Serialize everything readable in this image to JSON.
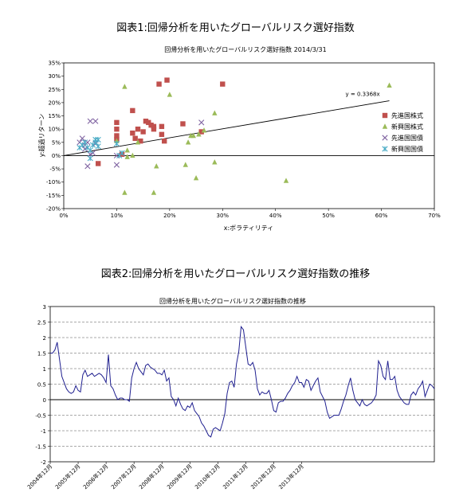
{
  "figure1": {
    "heading": "図表1:回帰分析を用いたグローバルリスク選好指数"
  },
  "figure2": {
    "heading": "図表2:回帰分析を用いたグローバルリスク選好指数の推移"
  },
  "chart_data": [
    {
      "type": "scatter",
      "title": "回帰分析を用いたグローバルリスク選好指数 2014/3/31",
      "xlabel": "x:ボラティリティ",
      "ylabel": "y:超過リターン",
      "xlim": [
        0,
        70
      ],
      "ylim": [
        -20,
        35
      ],
      "x_ticks": [
        "0%",
        "10%",
        "20%",
        "30%",
        "40%",
        "50%",
        "60%",
        "70%"
      ],
      "y_ticks": [
        "35%",
        "30%",
        "25%",
        "20%",
        "15%",
        "10%",
        "5%",
        "0%",
        "-5%",
        "-10%",
        "-15%",
        "-20%"
      ],
      "legend_position": "right",
      "regression": {
        "label": "y = 0.3368x",
        "slope": 0.3368,
        "x_range": [
          0,
          61.5
        ]
      },
      "series": [
        {
          "name": "先進国株式",
          "marker": "square",
          "color": "#c0504d",
          "points": [
            [
              10,
              12.5
            ],
            [
              10,
              10
            ],
            [
              10,
              7.5
            ],
            [
              10,
              6
            ],
            [
              11,
              0.5
            ],
            [
              6.5,
              -3
            ],
            [
              13,
              17
            ],
            [
              13,
              8.5
            ],
            [
              13.5,
              6.5
            ],
            [
              14,
              10
            ],
            [
              14.5,
              5.5
            ],
            [
              15,
              9
            ],
            [
              15.5,
              13
            ],
            [
              16,
              12.5
            ],
            [
              16.5,
              11.5
            ],
            [
              17,
              10
            ],
            [
              17,
              11
            ],
            [
              18,
              27
            ],
            [
              18.5,
              11
            ],
            [
              18.5,
              8
            ],
            [
              19,
              5.5
            ],
            [
              19.5,
              28.5
            ],
            [
              22.5,
              12
            ],
            [
              26,
              9
            ],
            [
              30,
              27
            ]
          ]
        },
        {
          "name": "新興国株式",
          "marker": "triangle",
          "color": "#9bbb59",
          "points": [
            [
              11.5,
              26
            ],
            [
              11.5,
              -14
            ],
            [
              12,
              2
            ],
            [
              12,
              -0.5
            ],
            [
              13,
              0
            ],
            [
              10,
              5.5
            ],
            [
              14,
              5
            ],
            [
              17,
              -14
            ],
            [
              17.5,
              -4
            ],
            [
              20,
              23
            ],
            [
              23,
              -3.5
            ],
            [
              23.5,
              5
            ],
            [
              24,
              7.5
            ],
            [
              24.5,
              7.5
            ],
            [
              25,
              -8.5
            ],
            [
              25.5,
              8
            ],
            [
              26.5,
              9.5
            ],
            [
              28.5,
              16
            ],
            [
              28.5,
              -2.5
            ],
            [
              42,
              -9.5
            ],
            [
              61.5,
              26.5
            ]
          ]
        },
        {
          "name": "先進国国債",
          "marker": "x",
          "color": "#8064a2",
          "points": [
            [
              3,
              5
            ],
            [
              3.5,
              6.5
            ],
            [
              4,
              4
            ],
            [
              4,
              2.5
            ],
            [
              4.5,
              5
            ],
            [
              4.5,
              -4
            ],
            [
              5,
              13
            ],
            [
              5,
              0.5
            ],
            [
              5.5,
              1
            ],
            [
              6,
              13
            ],
            [
              6,
              4.5
            ],
            [
              10,
              0
            ],
            [
              10,
              -3.5
            ],
            [
              26,
              12.5
            ]
          ]
        },
        {
          "name": "新興国国債",
          "marker": "star",
          "color": "#4bacc6",
          "points": [
            [
              3,
              3
            ],
            [
              3.5,
              4
            ],
            [
              4,
              5
            ],
            [
              4.5,
              3
            ],
            [
              5,
              2
            ],
            [
              5,
              -1
            ],
            [
              5.5,
              4
            ],
            [
              6,
              6
            ],
            [
              6,
              5
            ],
            [
              6.5,
              6
            ],
            [
              6.5,
              3.5
            ],
            [
              10,
              4.5
            ],
            [
              10.5,
              0
            ],
            [
              11,
              1
            ]
          ]
        }
      ]
    },
    {
      "type": "line",
      "title": "回帰分析を用いたグローバルリスク選好指数の推移",
      "ylim": [
        -2,
        3
      ],
      "y_ticks": [
        "3",
        "2.5",
        "2",
        "1.5",
        "1",
        "0.5",
        "0",
        "-0.5",
        "-1",
        "-1.5",
        "-2"
      ],
      "x_labels": [
        "2004年12月",
        "2005年12月",
        "2006年12月",
        "2007年12月",
        "2008年12月",
        "2009年12月",
        "2010年12月",
        "2011年12月",
        "2012年12月",
        "2013年12月"
      ],
      "x_start": "2004年12月",
      "x_end": "2014年3月",
      "series": [
        {
          "name": "",
          "color": "#1f1f8f",
          "values": [
            1.5,
            1.5,
            1.6,
            1.85,
            1.3,
            0.75,
            0.55,
            0.35,
            0.25,
            0.2,
            0.25,
            0.45,
            0.3,
            0.25,
            0.8,
            0.95,
            0.75,
            0.8,
            0.85,
            0.75,
            0.8,
            0.85,
            0.8,
            0.7,
            0.55,
            1.45,
            0.45,
            0.35,
            0.15,
            0.0,
            0.05,
            0.05,
            0.0,
            0.0,
            -0.05,
            0.7,
            1.0,
            1.2,
            1.0,
            0.9,
            0.8,
            1.1,
            1.15,
            1.05,
            1.0,
            0.95,
            0.85,
            0.85,
            0.8,
            0.95,
            0.6,
            0.7,
            0.1,
            0.0,
            -0.2,
            0.05,
            -0.15,
            -0.3,
            -0.35,
            -0.2,
            -0.25,
            -0.1,
            -0.35,
            -0.45,
            -0.55,
            -0.75,
            -0.85,
            -1.0,
            -1.15,
            -1.2,
            -0.95,
            -0.9,
            -0.95,
            -1.0,
            -0.75,
            -0.45,
            0.2,
            0.55,
            0.6,
            0.4,
            1.15,
            1.55,
            2.35,
            2.25,
            1.7,
            1.15,
            1.1,
            1.2,
            0.95,
            0.35,
            0.15,
            0.25,
            0.2,
            0.2,
            0.3,
            0.0,
            -0.35,
            -0.4,
            -0.1,
            -0.05,
            -0.05,
            0.05,
            0.2,
            0.3,
            0.45,
            0.55,
            0.75,
            0.55,
            0.55,
            0.4,
            0.65,
            0.6,
            0.3,
            0.45,
            0.6,
            0.7,
            0.25,
            0.1,
            -0.05,
            -0.4,
            -0.6,
            -0.55,
            -0.5,
            -0.5,
            -0.5,
            -0.3,
            -0.05,
            0.15,
            0.45,
            0.7,
            0.3,
            0.0,
            -0.1,
            -0.2,
            0.0,
            -0.15,
            -0.2,
            -0.15,
            -0.1,
            0.0,
            0.15,
            1.25,
            1.1,
            0.75,
            0.65,
            1.25,
            0.65,
            0.65,
            0.75,
            0.3,
            0.1,
            0.0,
            -0.1,
            -0.15,
            -0.15,
            0.15,
            0.25,
            0.15,
            0.35,
            0.45,
            0.6,
            0.1,
            0.3,
            0.5,
            0.45,
            0.35
          ]
        }
      ]
    }
  ]
}
